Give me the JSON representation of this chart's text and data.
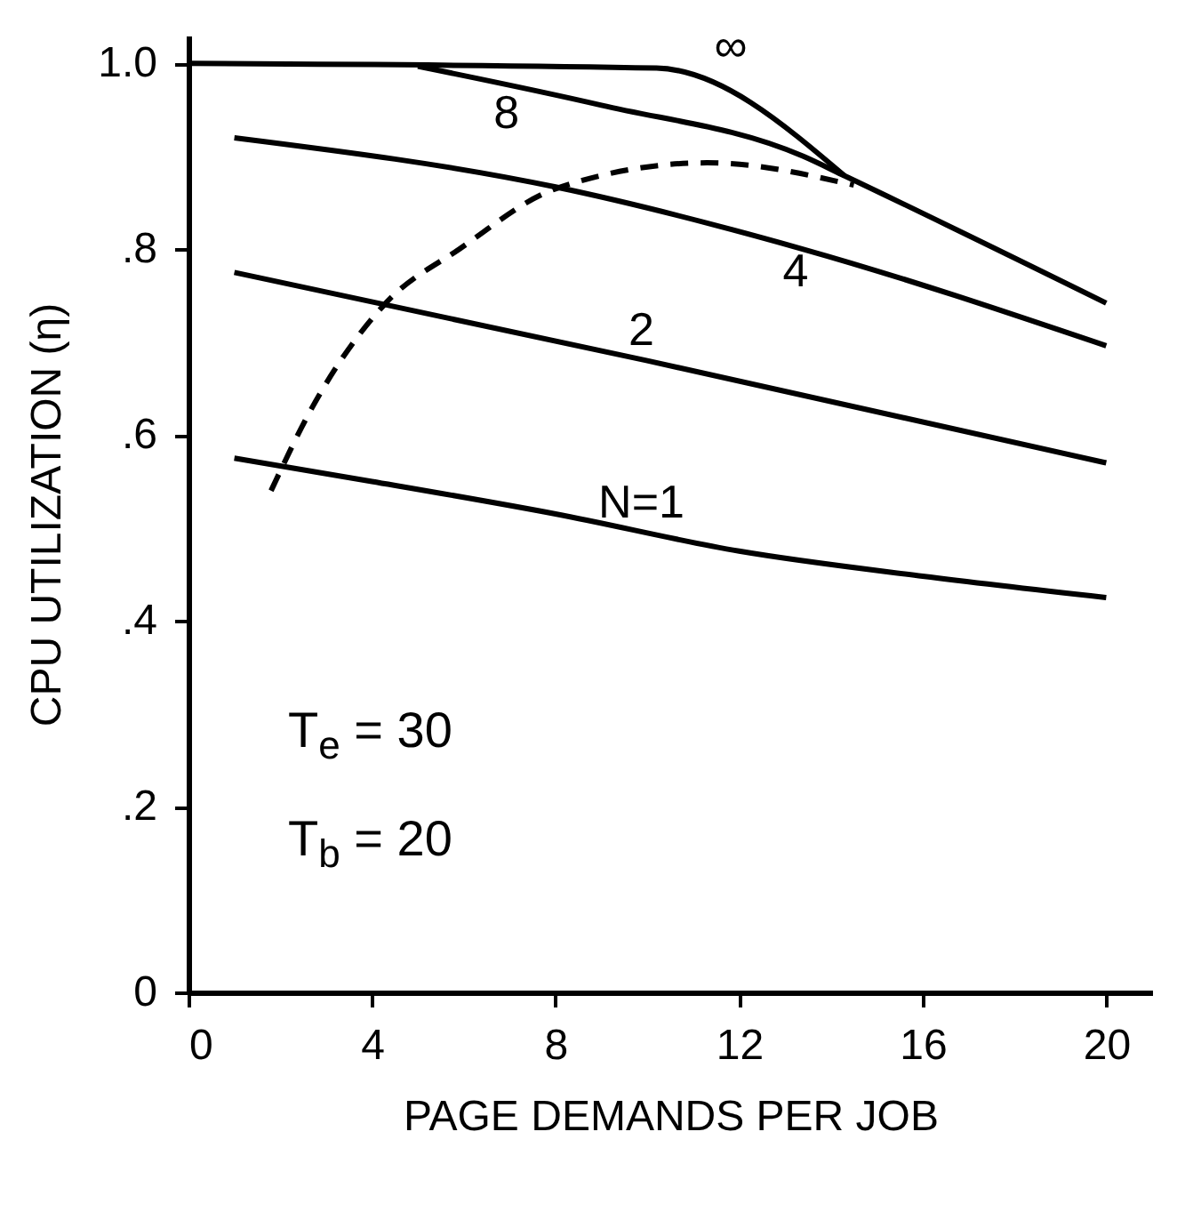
{
  "chart_data": {
    "type": "line",
    "xlabel": "PAGE DEMANDS PER JOB",
    "ylabel": "CPU UTILIZATION (η)",
    "annotations": [
      "T$_{e}$ = 30",
      "T$_{b}$ = 20"
    ],
    "xlim": [
      0,
      21
    ],
    "ylim": [
      0,
      1.03
    ],
    "xticks": [
      0,
      4,
      8,
      12,
      16,
      20
    ],
    "yticks": [
      {
        "value": 0,
        "label": "0"
      },
      {
        "value": 0.2,
        "label": ".2"
      },
      {
        "value": 0.4,
        "label": ".4"
      },
      {
        "value": 0.6,
        "label": ".6"
      },
      {
        "value": 0.8,
        "label": ".8"
      },
      {
        "value": 1.0,
        "label": "1.0"
      }
    ],
    "grid": false,
    "legend": false,
    "marker": "none",
    "series": [
      {
        "name": "N=1",
        "color": "#000000",
        "x": [
          1,
          4,
          8,
          12,
          16,
          20
        ],
        "values": [
          0.575,
          0.55,
          0.515,
          0.475,
          0.448,
          0.425
        ]
      },
      {
        "name": "2",
        "color": "#000000",
        "x": [
          1,
          10,
          20
        ],
        "values": [
          0.775,
          0.68,
          0.57
        ]
      },
      {
        "name": "4",
        "color": "#000000",
        "x": [
          1,
          8,
          13.4,
          20
        ],
        "values": [
          0.92,
          0.867,
          0.8,
          0.696
        ]
      },
      {
        "name": "8",
        "color": "#000000",
        "x": [
          5,
          9,
          13.4,
          14.3,
          20
        ],
        "values": [
          0.997,
          0.955,
          0.9,
          0.879,
          0.742
        ]
      },
      {
        "name": "∞",
        "color": "#000000",
        "x": [
          0,
          10.2,
          14.3
        ],
        "values": [
          1.0,
          0.995,
          0.879
        ]
      },
      {
        "color": "#000000",
        "line_style": "dashed",
        "x": [
          1.8,
          2.7,
          4.3,
          5.9,
          8,
          11.3,
          14.5
        ],
        "values": [
          0.54,
          0.63,
          0.742,
          0.8,
          0.865,
          0.893,
          0.869
        ]
      }
    ]
  }
}
